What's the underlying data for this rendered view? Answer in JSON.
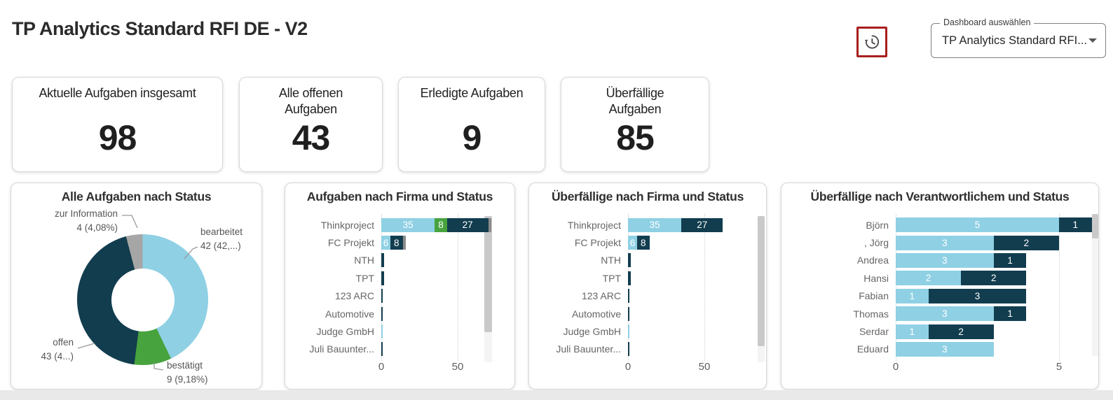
{
  "header": {
    "title": "TP Analytics Standard RFI DE - V2",
    "history_button": {
      "icon": "history-icon",
      "border_color": "#A91E1E"
    },
    "dashboard_select": {
      "label": "Dashboard auswählen",
      "value": "TP Analytics Standard RFI..."
    }
  },
  "kpis": [
    {
      "label": "Aktuelle Aufgaben insgesamt",
      "value": "98"
    },
    {
      "label": "Alle offenen Aufgaben",
      "value": "43"
    },
    {
      "label": "Erledigte Aufgaben",
      "value": "9"
    },
    {
      "label": "Überfällige Aufgaben",
      "value": "85"
    }
  ],
  "status_colors": {
    "bearbeitet": "#8FD0E4",
    "bestätigt": "#47A33E",
    "offen": "#123D4F",
    "zur Information": "#8C8C8C"
  },
  "chart_data": [
    {
      "type": "pie",
      "title": "Alle Aufgaben nach Status",
      "total": 98,
      "slices": [
        {
          "label": "bearbeitet",
          "value": 42,
          "display": "42 (42,...)",
          "color": "#8FD0E4"
        },
        {
          "label": "bestätigt",
          "value": 9,
          "display": "9 (9,18%)",
          "color": "#47A33E"
        },
        {
          "label": "offen",
          "value": 43,
          "display": "43 (4...)",
          "color": "#123D4F"
        },
        {
          "label": "zur Information",
          "value": 4,
          "display": "4 (4,08%)",
          "color": "#A6A6A6"
        }
      ]
    },
    {
      "type": "bar",
      "title": "Aufgaben nach Firma und Status",
      "orientation": "horizontal-stacked",
      "categories": [
        "Thinkproject",
        "FC Projekt",
        "NTH",
        "TPT",
        "123 ARC",
        "Automotive",
        "Judge GmbH",
        "Juli Bauunter..."
      ],
      "series": [
        {
          "name": "bearbeitet",
          "color": "#8FD0E4",
          "values": [
            35,
            6,
            0,
            0,
            0,
            0,
            1,
            0
          ]
        },
        {
          "name": "bestätigt",
          "color": "#47A33E",
          "values": [
            8,
            0,
            0,
            0,
            0,
            0,
            0,
            0
          ]
        },
        {
          "name": "offen",
          "color": "#123D4F",
          "values": [
            27,
            8,
            2,
            2,
            1,
            1,
            0,
            1
          ]
        },
        {
          "name": "zur Information",
          "color": "#8C8C8C",
          "values": [
            2,
            2,
            0,
            0,
            0,
            0,
            0,
            0
          ]
        }
      ],
      "axis_ticks": [
        0,
        50
      ],
      "xlim": [
        0,
        80
      ],
      "grid": "dotted-vertical"
    },
    {
      "type": "bar",
      "title": "Überfällige nach Firma und Status",
      "orientation": "horizontal-stacked",
      "categories": [
        "Thinkproject",
        "FC Projekt",
        "NTH",
        "TPT",
        "123 ARC",
        "Automotive",
        "Judge GmbH",
        "Juli Bauunter..."
      ],
      "series": [
        {
          "name": "bearbeitet",
          "color": "#8FD0E4",
          "values": [
            35,
            6,
            0,
            0,
            0,
            0,
            1,
            0
          ]
        },
        {
          "name": "offen",
          "color": "#123D4F",
          "values": [
            27,
            8,
            2,
            2,
            1,
            1,
            0,
            1
          ]
        }
      ],
      "axis_ticks": [
        0,
        50
      ],
      "xlim": [
        0,
        80
      ],
      "grid": "dotted-vertical"
    },
    {
      "type": "bar",
      "title": "Überfällige nach Verantwortlichem und Status",
      "orientation": "horizontal-stacked",
      "categories": [
        "Björn",
        ", Jörg",
        "Andrea",
        "Hansi",
        "Fabian",
        "Thomas",
        "Serdar",
        "Eduard"
      ],
      "series": [
        {
          "name": "bearbeitet",
          "color": "#8FD0E4",
          "values": [
            5,
            3,
            3,
            2,
            1,
            3,
            1,
            3
          ]
        },
        {
          "name": "offen",
          "color": "#123D4F",
          "values": [
            1,
            2,
            1,
            2,
            3,
            1,
            2,
            0
          ]
        }
      ],
      "axis_ticks": [
        0,
        5
      ],
      "xlim": [
        0,
        6.3
      ],
      "grid": "dotted-vertical"
    }
  ]
}
